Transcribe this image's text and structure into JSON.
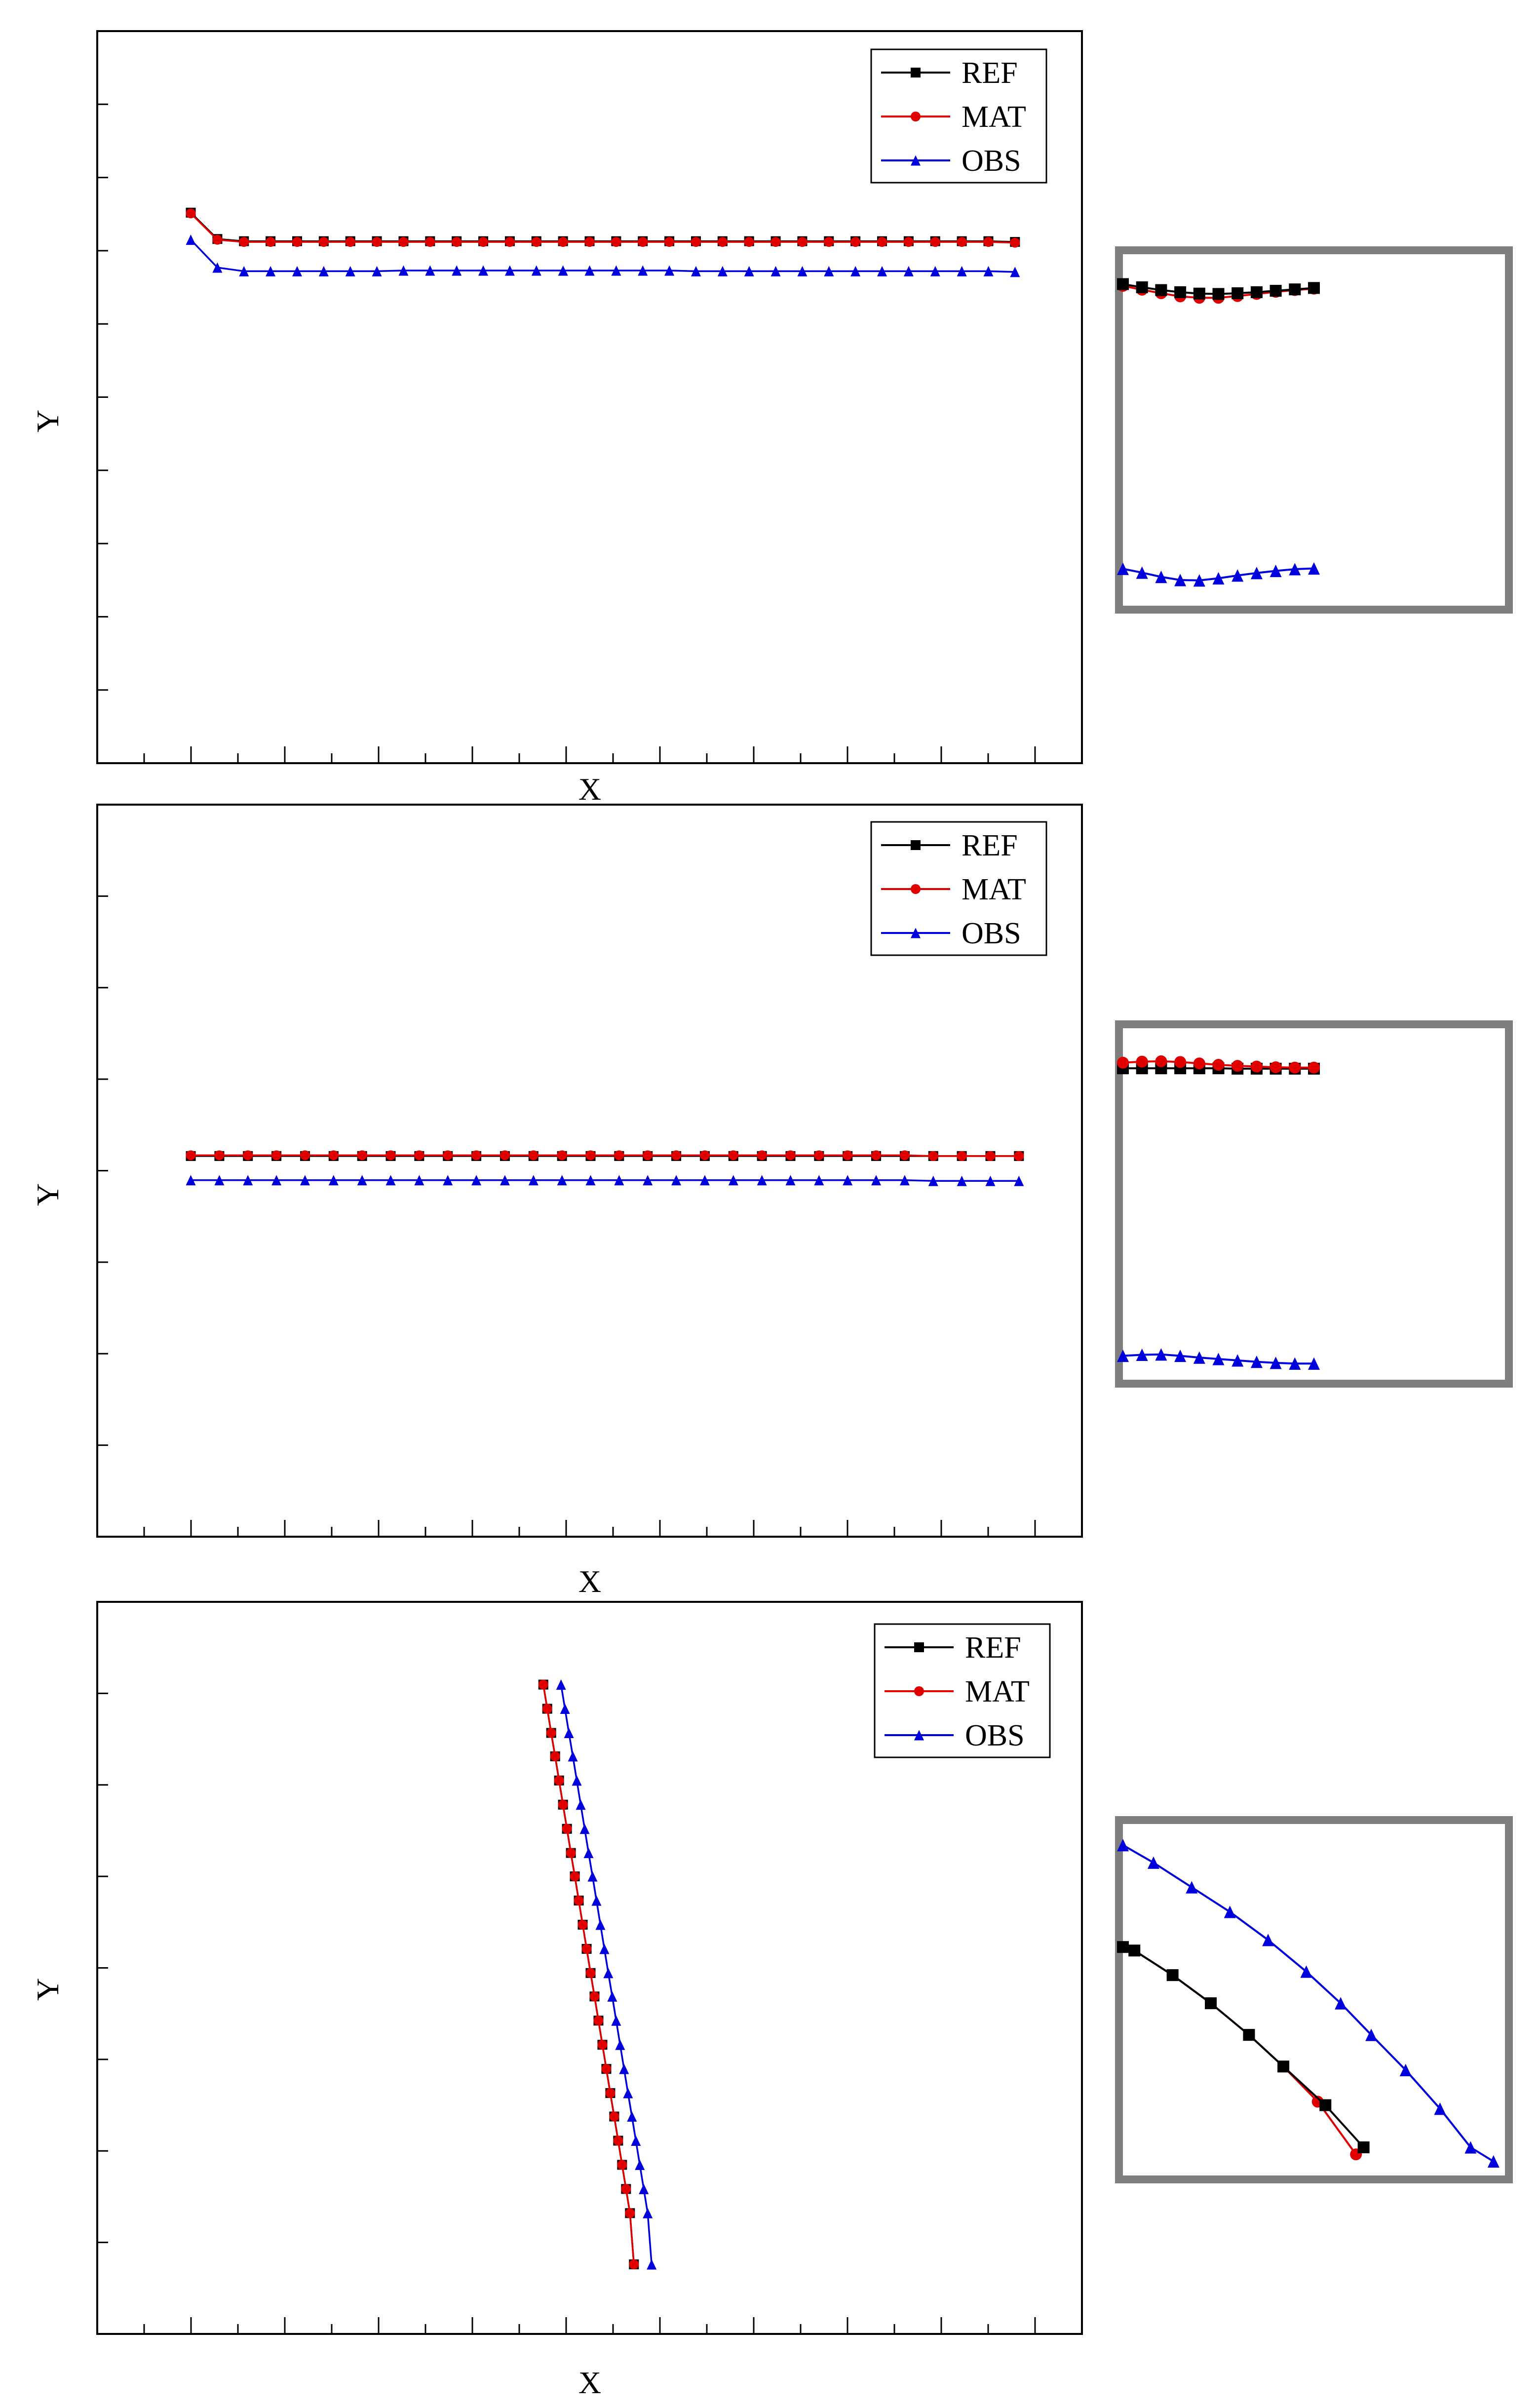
{
  "colors": {
    "REF": "#000000",
    "MAT": "#e00000",
    "OBS": "#0000dd",
    "inset_border": "#7f7f7f"
  },
  "chart_data": [
    {
      "id": "panel-1",
      "type": "line",
      "xlabel": "X",
      "ylabel": "Y",
      "grid": false,
      "tick_labels": false,
      "legend_position": "top-right",
      "xlim": [
        0,
        100
      ],
      "ylim": [
        0,
        100
      ],
      "series": [
        {
          "name": "REF",
          "marker": "square",
          "x": [
            9.5,
            12.2,
            14.9,
            17.6,
            20.3,
            23.0,
            25.7,
            28.4,
            31.1,
            33.8,
            36.5,
            39.2,
            41.9,
            44.6,
            47.3,
            50.0,
            52.7,
            55.4,
            58.1,
            60.8,
            63.5,
            66.2,
            68.9,
            71.6,
            74.3,
            77.0,
            79.7,
            82.4,
            85.1,
            87.8,
            90.5,
            93.2
          ],
          "y": [
            75.2,
            71.6,
            71.3,
            71.3,
            71.3,
            71.3,
            71.3,
            71.3,
            71.3,
            71.3,
            71.3,
            71.3,
            71.3,
            71.3,
            71.3,
            71.3,
            71.3,
            71.3,
            71.3,
            71.3,
            71.3,
            71.3,
            71.3,
            71.3,
            71.3,
            71.3,
            71.3,
            71.3,
            71.3,
            71.3,
            71.3,
            71.2
          ]
        },
        {
          "name": "MAT",
          "marker": "circle",
          "x": [
            9.5,
            12.2,
            14.9,
            17.6,
            20.3,
            23.0,
            25.7,
            28.4,
            31.1,
            33.8,
            36.5,
            39.2,
            41.9,
            44.6,
            47.3,
            50.0,
            52.7,
            55.4,
            58.1,
            60.8,
            63.5,
            66.2,
            68.9,
            71.6,
            74.3,
            77.0,
            79.7,
            82.4,
            85.1,
            87.8,
            90.5,
            93.2
          ],
          "y": [
            75.1,
            71.5,
            71.2,
            71.2,
            71.2,
            71.2,
            71.2,
            71.2,
            71.2,
            71.2,
            71.2,
            71.2,
            71.2,
            71.2,
            71.2,
            71.2,
            71.2,
            71.2,
            71.2,
            71.2,
            71.2,
            71.2,
            71.2,
            71.2,
            71.2,
            71.2,
            71.2,
            71.2,
            71.2,
            71.2,
            71.2,
            71.1
          ]
        },
        {
          "name": "OBS",
          "marker": "triangle",
          "x": [
            9.5,
            12.2,
            14.9,
            17.6,
            20.3,
            23.0,
            25.7,
            28.4,
            31.1,
            33.8,
            36.5,
            39.2,
            41.9,
            44.6,
            47.3,
            50.0,
            52.7,
            55.4,
            58.1,
            60.8,
            63.5,
            66.2,
            68.9,
            71.6,
            74.3,
            77.0,
            79.7,
            82.4,
            85.1,
            87.8,
            90.5,
            93.2
          ],
          "y": [
            71.5,
            67.7,
            67.2,
            67.2,
            67.2,
            67.2,
            67.2,
            67.2,
            67.3,
            67.3,
            67.3,
            67.3,
            67.3,
            67.3,
            67.3,
            67.3,
            67.3,
            67.3,
            67.3,
            67.2,
            67.2,
            67.2,
            67.2,
            67.2,
            67.2,
            67.2,
            67.2,
            67.2,
            67.2,
            67.2,
            67.2,
            67.1
          ]
        }
      ],
      "inset": {
        "series": [
          {
            "name": "REF",
            "marker": "square",
            "x": [
              0,
              5,
              10,
              15,
              20,
              25,
              30,
              35,
              40,
              45,
              50
            ],
            "y": [
              91.5,
              90.6,
              89.8,
              89.2,
              88.8,
              88.7,
              88.9,
              89.2,
              89.6,
              90.0,
              90.4
            ]
          },
          {
            "name": "MAT",
            "marker": "circle",
            "x": [
              0,
              5,
              10,
              15,
              20,
              25,
              30,
              35,
              40,
              45,
              50
            ],
            "y": [
              91.0,
              89.9,
              88.9,
              88.0,
              87.6,
              87.6,
              88.1,
              88.7,
              89.3,
              89.8,
              90.2
            ]
          },
          {
            "name": "OBS",
            "marker": "triangle",
            "x": [
              0,
              5,
              10,
              15,
              20,
              25,
              30,
              35,
              40,
              45,
              50
            ],
            "y": [
              10.5,
              9.4,
              8.2,
              7.3,
              7.2,
              7.8,
              8.6,
              9.3,
              9.9,
              10.4,
              10.6
            ]
          }
        ]
      }
    },
    {
      "id": "panel-2",
      "type": "line",
      "xlabel": "X",
      "ylabel": "Y",
      "grid": false,
      "tick_labels": false,
      "legend_position": "top-right",
      "xlim": [
        0,
        100
      ],
      "ylim": [
        0,
        100
      ],
      "series": [
        {
          "name": "REF",
          "marker": "square",
          "x": [
            9.5,
            12.4,
            15.3,
            18.2,
            21.1,
            24.0,
            26.9,
            29.8,
            32.7,
            35.6,
            38.5,
            41.4,
            44.3,
            47.2,
            50.1,
            53.0,
            55.9,
            58.8,
            61.7,
            64.6,
            67.5,
            70.4,
            73.3,
            76.2,
            79.1,
            82.0,
            84.9,
            87.8,
            90.7,
            93.6
          ],
          "y": [
            52.0,
            52.0,
            52.0,
            52.0,
            52.0,
            52.0,
            52.0,
            52.0,
            52.0,
            52.0,
            52.0,
            52.0,
            52.0,
            52.0,
            52.0,
            52.0,
            52.0,
            52.0,
            52.0,
            52.0,
            52.0,
            52.0,
            52.0,
            52.0,
            52.0,
            52.0,
            52.0,
            52.0,
            52.0,
            52.0
          ]
        },
        {
          "name": "MAT",
          "marker": "circle",
          "x": [
            9.5,
            12.4,
            15.3,
            18.2,
            21.1,
            24.0,
            26.9,
            29.8,
            32.7,
            35.6,
            38.5,
            41.4,
            44.3,
            47.2,
            50.1,
            53.0,
            55.9,
            58.8,
            61.7,
            64.6,
            67.5,
            70.4,
            73.3,
            76.2,
            79.1,
            82.0,
            84.9,
            87.8,
            90.7,
            93.6
          ],
          "y": [
            52.1,
            52.1,
            52.1,
            52.1,
            52.1,
            52.1,
            52.1,
            52.1,
            52.1,
            52.1,
            52.1,
            52.1,
            52.1,
            52.1,
            52.1,
            52.1,
            52.1,
            52.1,
            52.1,
            52.1,
            52.1,
            52.1,
            52.1,
            52.1,
            52.1,
            52.1,
            52.0,
            52.0,
            52.0,
            52.0
          ]
        },
        {
          "name": "OBS",
          "marker": "triangle",
          "x": [
            9.5,
            12.4,
            15.3,
            18.2,
            21.1,
            24.0,
            26.9,
            29.8,
            32.7,
            35.6,
            38.5,
            41.4,
            44.3,
            47.2,
            50.1,
            53.0,
            55.9,
            58.8,
            61.7,
            64.6,
            67.5,
            70.4,
            73.3,
            76.2,
            79.1,
            82.0,
            84.9,
            87.8,
            90.7,
            93.6
          ],
          "y": [
            48.7,
            48.7,
            48.7,
            48.7,
            48.7,
            48.7,
            48.7,
            48.7,
            48.7,
            48.7,
            48.7,
            48.7,
            48.7,
            48.7,
            48.7,
            48.7,
            48.7,
            48.7,
            48.7,
            48.7,
            48.7,
            48.7,
            48.7,
            48.7,
            48.7,
            48.7,
            48.6,
            48.6,
            48.6,
            48.6
          ]
        }
      ],
      "inset": {
        "series": [
          {
            "name": "REF",
            "marker": "square",
            "x": [
              0,
              5,
              10,
              15,
              20,
              25,
              30,
              35,
              40,
              45,
              50
            ],
            "y": [
              88.6,
              88.6,
              88.6,
              88.6,
              88.6,
              88.6,
              88.5,
              88.5,
              88.5,
              88.5,
              88.5
            ]
          },
          {
            "name": "MAT",
            "marker": "circle",
            "x": [
              0,
              5,
              10,
              15,
              20,
              25,
              30,
              35,
              40,
              45,
              50
            ],
            "y": [
              90.2,
              90.5,
              90.6,
              90.4,
              90.0,
              89.6,
              89.3,
              89.1,
              88.9,
              88.8,
              88.8
            ]
          },
          {
            "name": "OBS",
            "marker": "triangle",
            "x": [
              0,
              5,
              10,
              15,
              20,
              25,
              30,
              35,
              40,
              45,
              50
            ],
            "y": [
              6.8,
              7.1,
              7.2,
              6.8,
              6.3,
              5.9,
              5.5,
              5.1,
              4.8,
              4.6,
              4.6
            ]
          }
        ]
      }
    },
    {
      "id": "panel-3",
      "type": "line",
      "xlabel": "X",
      "ylabel": "Y",
      "grid": false,
      "tick_labels": false,
      "legend_position": "top-right",
      "xlim": [
        0,
        100
      ],
      "ylim": [
        0,
        100
      ],
      "series": [
        {
          "name": "REF",
          "marker": "square",
          "x": [
            45.3,
            45.7,
            46.1,
            46.5,
            46.9,
            47.3,
            47.7,
            48.1,
            48.5,
            48.9,
            49.3,
            49.7,
            50.1,
            50.5,
            50.9,
            51.3,
            51.7,
            52.1,
            52.5,
            52.9,
            53.3,
            53.7,
            54.1,
            54.5
          ],
          "y": [
            88.7,
            85.4,
            82.1,
            78.9,
            75.6,
            72.3,
            69.0,
            65.7,
            62.5,
            59.2,
            55.9,
            52.6,
            49.3,
            46.1,
            42.8,
            39.5,
            36.2,
            32.9,
            29.7,
            26.4,
            23.1,
            19.8,
            16.5,
            9.5
          ]
        },
        {
          "name": "MAT",
          "marker": "circle",
          "x": [
            45.3,
            45.7,
            46.1,
            46.5,
            46.9,
            47.3,
            47.7,
            48.1,
            48.5,
            48.9,
            49.3,
            49.7,
            50.1,
            50.5,
            50.9,
            51.3,
            51.7,
            52.1,
            52.5,
            52.9,
            53.3,
            53.7,
            54.1,
            54.5
          ],
          "y": [
            88.7,
            85.4,
            82.1,
            78.9,
            75.6,
            72.3,
            69.0,
            65.7,
            62.5,
            59.2,
            55.9,
            52.6,
            49.3,
            46.1,
            42.8,
            39.5,
            36.2,
            32.9,
            29.7,
            26.4,
            23.1,
            19.8,
            16.5,
            9.5
          ]
        },
        {
          "name": "OBS",
          "marker": "triangle",
          "x": [
            47.1,
            47.5,
            47.9,
            48.3,
            48.7,
            49.1,
            49.5,
            49.9,
            50.3,
            50.7,
            51.1,
            51.5,
            51.9,
            52.3,
            52.7,
            53.1,
            53.5,
            53.9,
            54.3,
            54.7,
            55.1,
            55.5,
            55.9,
            56.3
          ],
          "y": [
            88.7,
            85.4,
            82.1,
            78.9,
            75.6,
            72.3,
            69.0,
            65.7,
            62.5,
            59.2,
            55.9,
            52.6,
            49.3,
            46.1,
            42.8,
            39.5,
            36.2,
            32.9,
            29.7,
            26.4,
            23.1,
            19.8,
            16.5,
            9.5
          ]
        }
      ],
      "inset": {
        "series": [
          {
            "name": "REF",
            "marker": "square",
            "x": [
              0,
              3,
              13,
              23,
              33,
              42,
              53,
              63
            ],
            "y": [
              65,
              64,
              57,
              49,
              40,
              31,
              20,
              8
            ]
          },
          {
            "name": "MAT",
            "marker": "circle",
            "x": [
              0,
              3,
              13,
              23,
              33,
              42,
              51,
              61
            ],
            "y": [
              65,
              64,
              57,
              49,
              40,
              31,
              21,
              6
            ]
          },
          {
            "name": "OBS",
            "marker": "triangle",
            "x": [
              0,
              8,
              18,
              28,
              38,
              48,
              57,
              65,
              74,
              83,
              91,
              97
            ],
            "y": [
              94,
              89,
              82,
              75,
              67,
              58,
              49,
              40,
              30,
              19,
              8,
              4
            ]
          }
        ]
      }
    }
  ]
}
